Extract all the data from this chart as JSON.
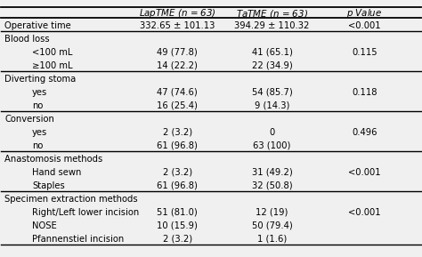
{
  "columns": [
    "",
    "LapTME (ι = 63)",
    "TaTME (ι = 63)",
    "ι Value"
  ],
  "rows": [
    {
      "label": "Operative time",
      "indent": 0,
      "lap": "332.65 ± 101.13",
      "ta": "394.29 ± 110.32",
      "p": "<0.001",
      "is_header": false
    },
    {
      "label": "Blood loss",
      "indent": 0,
      "lap": "",
      "ta": "",
      "p": "",
      "is_header": true
    },
    {
      "label": "<100 mL",
      "indent": 1,
      "lap": "49 (77.8)",
      "ta": "41 (65.1)",
      "p": "0.115",
      "is_header": false
    },
    {
      "label": "≥100 mL",
      "indent": 1,
      "lap": "14 (22.2)",
      "ta": "22 (34.9)",
      "p": "",
      "is_header": false
    },
    {
      "label": "Diverting stoma",
      "indent": 0,
      "lap": "",
      "ta": "",
      "p": "",
      "is_header": true
    },
    {
      "label": "yes",
      "indent": 1,
      "lap": "47 (74.6)",
      "ta": "54 (85.7)",
      "p": "0.118",
      "is_header": false
    },
    {
      "label": "no",
      "indent": 1,
      "lap": "16 (25.4)",
      "ta": "9 (14.3)",
      "p": "",
      "is_header": false
    },
    {
      "label": "Conversion",
      "indent": 0,
      "lap": "",
      "ta": "",
      "p": "",
      "is_header": true
    },
    {
      "label": "yes",
      "indent": 1,
      "lap": "2 (3.2)",
      "ta": "0",
      "p": "0.496",
      "is_header": false
    },
    {
      "label": "no",
      "indent": 1,
      "lap": "61 (96.8)",
      "ta": "63 (100)",
      "p": "",
      "is_header": false
    },
    {
      "label": "Anastomosis methods",
      "indent": 0,
      "lap": "",
      "ta": "",
      "p": "",
      "is_header": true
    },
    {
      "label": "Hand sewn",
      "indent": 1,
      "lap": "2 (3.2)",
      "ta": "31 (49.2)",
      "p": "<0.001",
      "is_header": false
    },
    {
      "label": "Staples",
      "indent": 1,
      "lap": "61 (96.8)",
      "ta": "32 (50.8)",
      "p": "",
      "is_header": false
    },
    {
      "label": "Specimen extraction methods",
      "indent": 0,
      "lap": "",
      "ta": "",
      "p": "",
      "is_header": true
    },
    {
      "label": "Right/Left lower incision",
      "indent": 1,
      "lap": "51 (81.0)",
      "ta": "12 (19)",
      "p": "<0.001",
      "is_header": false
    },
    {
      "label": "NOSE",
      "indent": 1,
      "lap": "10 (15.9)",
      "ta": "50 (79.4)",
      "p": "",
      "is_header": false
    },
    {
      "label": "Pfannenstiel incision",
      "indent": 1,
      "lap": "2 (3.2)",
      "ta": "1 (1.6)",
      "p": "",
      "is_header": false
    }
  ],
  "thick_lines_after_data": [
    0,
    3,
    6,
    9,
    12
  ],
  "font_size": 7.2,
  "bg_color": "#f0f0f0"
}
